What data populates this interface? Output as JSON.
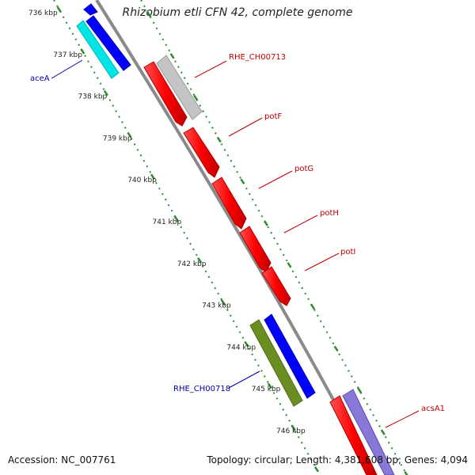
{
  "title": "Rhizobium etli CFN 42, complete genome",
  "footer": {
    "accession": "Accession: NC_007761",
    "summary": "Topology: circular; Length: 4,381,608 bp; Genes: 4,094"
  },
  "scale": {
    "ticks": [
      "736 kbp",
      "737 kbp",
      "738 kbp",
      "739 kbp",
      "740 kbp",
      "741 kbp",
      "742 kbp",
      "743 kbp",
      "744 kbp",
      "745 kbp",
      "746 kbp"
    ]
  },
  "genes": [
    {
      "name": "RHE_CH00713",
      "color": "#c00000"
    },
    {
      "name": "potF",
      "color": "#c00000"
    },
    {
      "name": "potG",
      "color": "#c00000"
    },
    {
      "name": "potH",
      "color": "#c00000"
    },
    {
      "name": "potI",
      "color": "#c00000"
    },
    {
      "name": "acsA1",
      "color": "#c00000"
    },
    {
      "name": "aceA",
      "color": "#0000aa"
    },
    {
      "name": "RHE_CH00718",
      "color": "#0000aa"
    }
  ],
  "colors": {
    "backbone": "#8a8a8a",
    "tick_dots": "#2e8b2e",
    "forward_gene": "#ff0000",
    "reverse_gene": "#0000ff",
    "cyan_gene": "#00e5e5",
    "grey_gene": "#c4c4c4",
    "olive_gene": "#6b8e23",
    "lavender_gene": "#8878d8"
  }
}
